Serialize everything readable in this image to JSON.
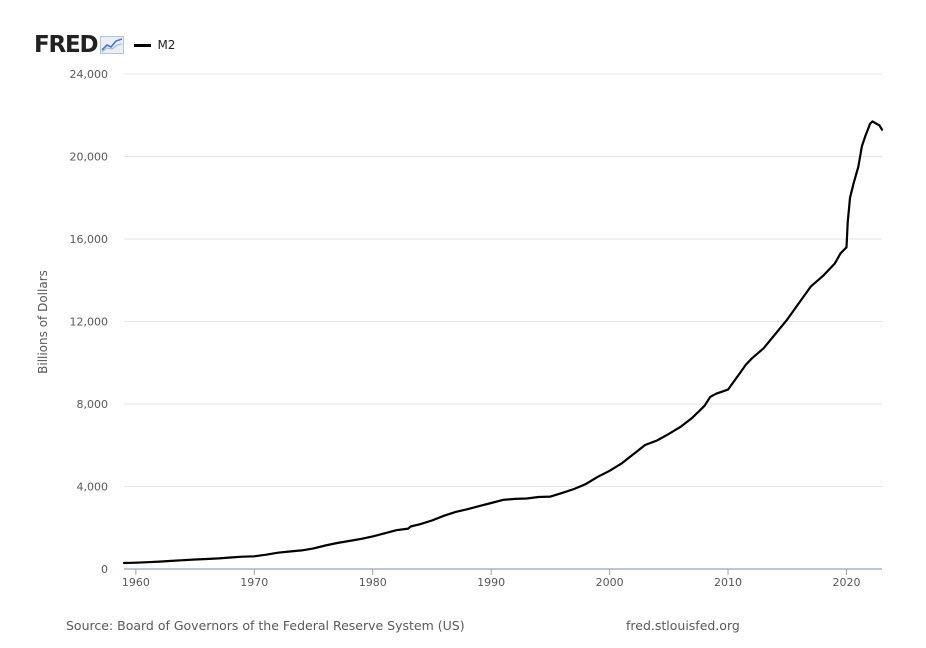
{
  "logo": {
    "text": "FRED",
    "icon": "line-graph-icon"
  },
  "legend": {
    "series_name": "M2",
    "color": "#000000"
  },
  "footer": {
    "source": "Source: Board of Governors of the Federal Reserve System (US)",
    "url": "fred.stlouisfed.org"
  },
  "chart_data": {
    "type": "line",
    "title": "",
    "xlabel": "",
    "ylabel": "Billions of Dollars",
    "xlim": [
      1959.0,
      2023.0
    ],
    "ylim": [
      0,
      24000
    ],
    "grid": true,
    "legend_position": "top-left",
    "x_ticks": [
      "1960",
      "1970",
      "1980",
      "1990",
      "2000",
      "2010",
      "2020"
    ],
    "y_ticks": [
      "0",
      "4,000",
      "8,000",
      "12,000",
      "16,000",
      "20,000",
      "24,000"
    ],
    "series": [
      {
        "name": "M2",
        "color": "#000000",
        "x": [
          1959.0,
          1960.0,
          1961.0,
          1962.0,
          1963.0,
          1964.0,
          1965.0,
          1966.0,
          1967.0,
          1968.0,
          1969.0,
          1970.0,
          1971.0,
          1972.0,
          1973.0,
          1974.0,
          1975.0,
          1976.0,
          1977.0,
          1978.0,
          1979.0,
          1980.0,
          1981.0,
          1982.0,
          1983.0,
          1983.2,
          1984.0,
          1985.0,
          1986.0,
          1987.0,
          1988.0,
          1989.0,
          1990.0,
          1991.0,
          1992.0,
          1993.0,
          1994.0,
          1995.0,
          1996.0,
          1997.0,
          1998.0,
          1999.0,
          2000.0,
          2001.0,
          2002.0,
          2003.0,
          2004.0,
          2005.0,
          2006.0,
          2007.0,
          2008.0,
          2008.5,
          2009.0,
          2010.0,
          2011.0,
          2011.5,
          2012.0,
          2013.0,
          2014.0,
          2015.0,
          2016.0,
          2017.0,
          2018.0,
          2019.0,
          2019.5,
          2020.0,
          2020.1,
          2020.3,
          2020.6,
          2021.0,
          2021.3,
          2021.6,
          2022.0,
          2022.2,
          2022.5,
          2022.8,
          2023.0
        ],
        "values": [
          290,
          305,
          330,
          360,
          395,
          425,
          460,
          485,
          515,
          560,
          595,
          615,
          695,
          790,
          850,
          900,
          1000,
          1140,
          1260,
          1360,
          1460,
          1580,
          1730,
          1880,
          1960,
          2060,
          2170,
          2350,
          2580,
          2770,
          2900,
          3050,
          3200,
          3350,
          3400,
          3420,
          3490,
          3510,
          3690,
          3880,
          4120,
          4470,
          4760,
          5110,
          5560,
          6010,
          6230,
          6550,
          6900,
          7340,
          7900,
          8350,
          8500,
          8700,
          9500,
          9900,
          10200,
          10700,
          11400,
          12100,
          12900,
          13700,
          14200,
          14800,
          15300,
          15600,
          16800,
          18000,
          18700,
          19500,
          20500,
          21000,
          21600,
          21700,
          21600,
          21500,
          21300
        ]
      }
    ]
  }
}
